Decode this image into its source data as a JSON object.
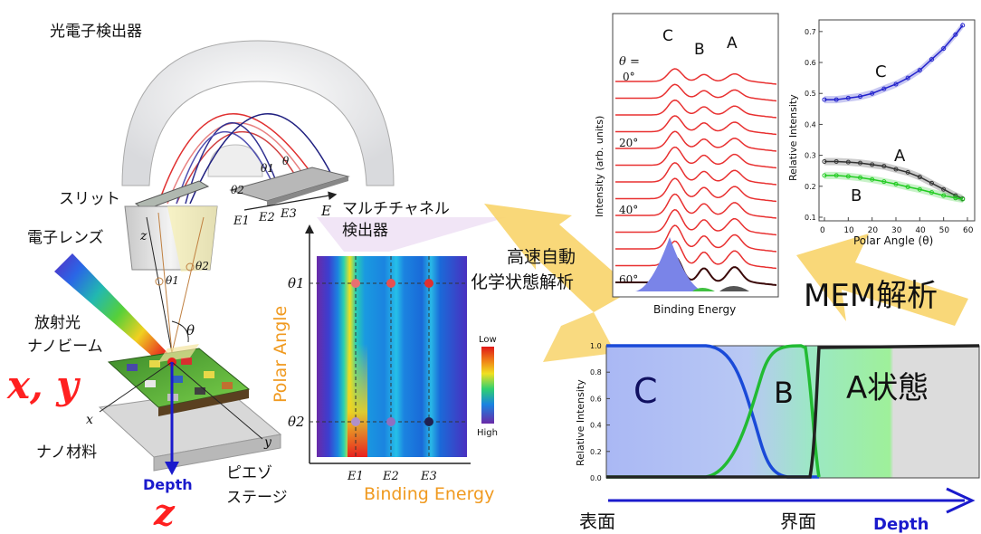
{
  "apparatus": {
    "detector_title": "光電子検出器",
    "slit": "スリット",
    "lens": "電子レンズ",
    "beam_line1": "放射光",
    "beam_line2": "ナノビーム",
    "xy": "x, y",
    "z": "z",
    "depth": "Depth",
    "material": "ナノ材料",
    "stage_line1": "ピエゾ",
    "stage_line2": "ステージ",
    "axis_x": "x",
    "axis_y": "y",
    "axis_z": "z",
    "theta": "θ",
    "theta1": "θ1",
    "theta2": "θ2",
    "multichannel_line1": "マルチチャネル",
    "multichannel_line2": "検出器",
    "E": "E",
    "E1": "E1",
    "E2": "E2",
    "E3": "E3"
  },
  "heatmap": {
    "ylabel": "Polar Angle",
    "xlabel": "Binding Energy",
    "theta1": "θ1",
    "theta2": "θ2",
    "ticks": [
      "E1",
      "E2",
      "E3"
    ],
    "colorbar_low": "Low",
    "colorbar_high": "High"
  },
  "arrow1_line1": "高速自動",
  "arrow1_line2": "化学状態解析",
  "mem_label": "MEM解析",
  "spectra_chart": {
    "type": "line",
    "ylabel": "Intensity (arb. units)",
    "xlabel": "Binding Energy",
    "theta_eq": "θ =",
    "peak_labels": [
      "C",
      "B",
      "A"
    ],
    "angle_labels": [
      "0°",
      "20°",
      "40°",
      "60°"
    ]
  },
  "chart_data": [
    {
      "type": "scatter",
      "xlabel": "Polar Angle (θ)",
      "ylabel": "Relative Intensity",
      "xlim": [
        0,
        60
      ],
      "ylim": [
        0.1,
        0.72
      ],
      "xticks": [
        0,
        10,
        20,
        30,
        40,
        50,
        60
      ],
      "yticks": [
        0.1,
        0.2,
        0.3,
        0.4,
        0.5,
        0.6,
        0.7
      ],
      "series": [
        {
          "name": "C",
          "color": "#2222cc",
          "x": [
            0,
            5,
            10,
            15,
            20,
            25,
            30,
            35,
            40,
            45,
            50,
            55,
            58
          ],
          "y": [
            0.48,
            0.48,
            0.485,
            0.49,
            0.5,
            0.515,
            0.53,
            0.55,
            0.575,
            0.61,
            0.645,
            0.69,
            0.72
          ]
        },
        {
          "name": "A",
          "color": "#333333",
          "x": [
            0,
            5,
            10,
            15,
            20,
            25,
            30,
            35,
            40,
            45,
            50,
            55,
            58
          ],
          "y": [
            0.28,
            0.28,
            0.278,
            0.275,
            0.27,
            0.265,
            0.255,
            0.245,
            0.23,
            0.21,
            0.19,
            0.17,
            0.16
          ]
        },
        {
          "name": "B",
          "color": "#22cc22",
          "x": [
            0,
            5,
            10,
            15,
            20,
            25,
            30,
            35,
            40,
            45,
            50,
            55,
            58
          ],
          "y": [
            0.235,
            0.235,
            0.232,
            0.228,
            0.222,
            0.215,
            0.207,
            0.198,
            0.19,
            0.18,
            0.17,
            0.162,
            0.158
          ]
        }
      ]
    },
    {
      "type": "area",
      "ylabel": "Relative Intensity",
      "ylim": [
        0,
        1
      ],
      "yticks": [
        0.0,
        0.2,
        0.4,
        0.6,
        0.8,
        1.0
      ],
      "region_labels": [
        "C",
        "B",
        "A状態"
      ],
      "surface_label": "表面",
      "interface_label": "界面",
      "depth_label": "Depth"
    }
  ],
  "colors": {
    "spectra_red": "#e83030",
    "peak_fill_blue": "#7a84e8",
    "arrow_yellow": "#f8d46a",
    "title_red": "#ff2020",
    "depth_blue": "#1a1acc",
    "axis_orange": "#f09a20"
  }
}
